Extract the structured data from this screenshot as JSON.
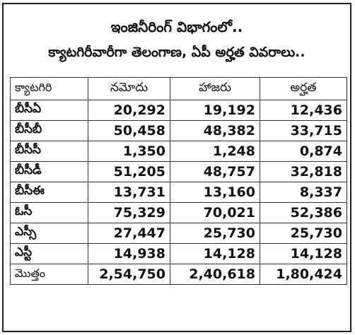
{
  "title_line1": "ఇంజినీరింగ్ విభాగంలో..",
  "title_line2": "క్యాటగిరీవారీగా తెలంగాణ, ఏపీ అర్హత వివరాలు..",
  "headers": [
    "క్యాటగిరి",
    "నమోదు",
    "హాజరు",
    "అర్హత"
  ],
  "rows": [
    {
      "category": "బీసీఏ",
      "registered": "20,292",
      "appeared": "19,192",
      "qualified": "12,436"
    },
    {
      "category": "బీసీబీ",
      "registered": "50,458",
      "appeared": "48,382",
      "qualified": "33,715"
    },
    {
      "category": "బీసీసీ",
      "registered": "1,350",
      "appeared": "1,248",
      "qualified": "0,874"
    },
    {
      "category": "బీసీడీ",
      "registered": "51,205",
      "appeared": "48,757",
      "qualified": "32,818"
    },
    {
      "category": "బీసీఈ",
      "registered": "13,731",
      "appeared": "13,160",
      "qualified": "8,337"
    },
    {
      "category": "ఓసీ",
      "registered": "75,329",
      "appeared": "70,021",
      "qualified": "52,386"
    },
    {
      "category": "ఎస్సీ",
      "registered": "27,447",
      "appeared": "25,730",
      "qualified": "25,730"
    },
    {
      "category": "ఎస్టీ",
      "registered": "14,938",
      "appeared": "14,128",
      "qualified": "14,128"
    },
    {
      "category": "మొత్తం",
      "registered": "2,54,750",
      "appeared": "2,40,618",
      "qualified": "1,80,424"
    }
  ]
}
